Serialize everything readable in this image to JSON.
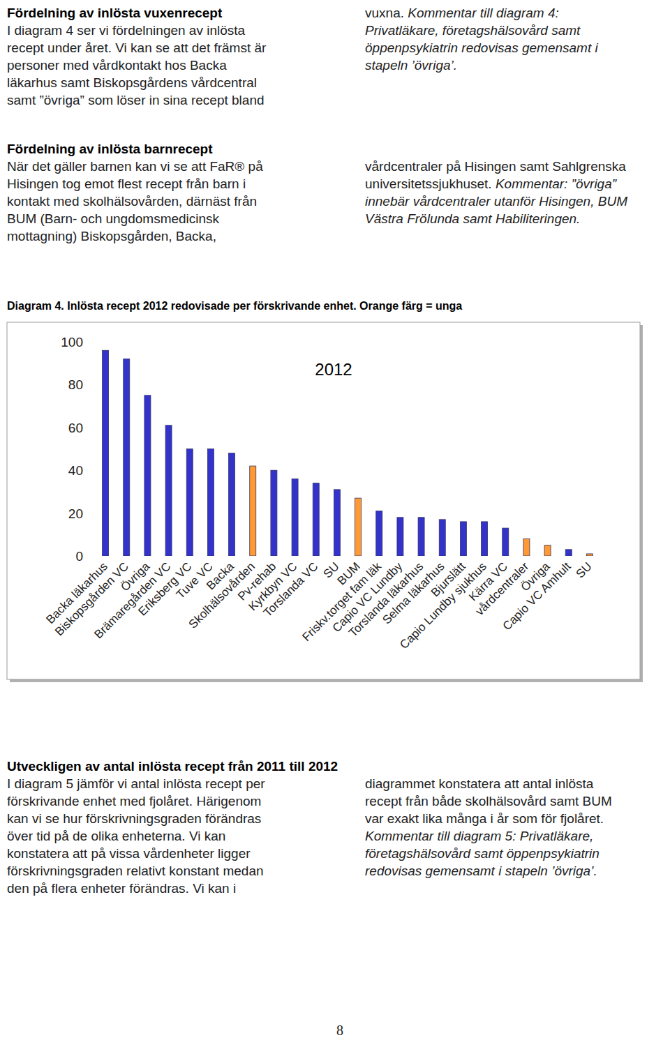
{
  "document": {
    "sections": [
      {
        "heading": "Fördelning av inlösta vuxenrecept",
        "left": [
          [
            {
              "text": "I diagram 4 ser vi fördelningen av inlösta"
            }
          ],
          [
            {
              "text": "recept under året. Vi kan se att det främst är"
            }
          ],
          [
            {
              "text": "personer med vårdkontakt hos Backa"
            }
          ],
          [
            {
              "text": "läkarhus samt Biskopsgårdens vårdcentral"
            }
          ],
          [
            {
              "text": "samt ”övriga” som löser in sina recept bland"
            }
          ]
        ],
        "right": [
          [
            {
              "text": "vuxna. "
            },
            {
              "text": "Kommentar till diagram 4:",
              "italic": true
            }
          ],
          [
            {
              "text": "Privatläkare, företagshälsovård samt",
              "italic": true
            }
          ],
          [
            {
              "text": "öppenpsykiatrin redovisas gemensamt i",
              "italic": true
            }
          ],
          [
            {
              "text": "stapeln ’övriga’.",
              "italic": true
            }
          ]
        ]
      },
      {
        "heading": "Fördelning av inlösta barnrecept",
        "left": [
          [
            {
              "text": "När det gäller barnen kan vi se att FaR® på"
            }
          ],
          [
            {
              "text": "Hisingen tog emot flest recept från barn i"
            }
          ],
          [
            {
              "text": "kontakt med skolhälsovården, därnäst från"
            }
          ],
          [
            {
              "text": "BUM (Barn- och ungdomsmedicinsk"
            }
          ],
          [
            {
              "text": "mottagning) Biskopsgården, Backa,"
            }
          ]
        ],
        "right": [
          [
            {
              "text": "vårdcentraler på Hisingen samt Sahlgrenska"
            }
          ],
          [
            {
              "text": "universitetssjukhuset. "
            },
            {
              "text": "Kommentar: ”övriga”",
              "italic": true
            }
          ],
          [
            {
              "text": "innebär vårdcentraler utanför Hisingen, BUM",
              "italic": true
            }
          ],
          [
            {
              "text": "Västra Frölunda samt Habiliteringen.",
              "italic": true
            }
          ]
        ]
      },
      {
        "heading": "Utveckligen av antal inlösta recept från 2011 till 2012",
        "left": [
          [
            {
              "text": "I diagram 5 jämför vi antal inlösta recept per"
            }
          ],
          [
            {
              "text": "förskrivande enhet med fjolåret. Härigenom"
            }
          ],
          [
            {
              "text": "kan vi se hur förskrivningsgraden förändras"
            }
          ],
          [
            {
              "text": "över tid på de olika enheterna. Vi kan"
            }
          ],
          [
            {
              "text": "konstatera att på vissa vårdenheter ligger"
            }
          ],
          [
            {
              "text": "förskrivningsgraden relativt konstant medan"
            }
          ],
          [
            {
              "text": "den på flera enheter förändras. Vi kan i"
            }
          ]
        ],
        "right": [
          [
            {
              "text": "diagrammet konstatera att antal inlösta"
            }
          ],
          [
            {
              "text": "recept från både skolhälsovård samt BUM"
            }
          ],
          [
            {
              "text": "var exakt lika många i år som för fjolåret."
            }
          ],
          [
            {
              "text": "Kommentar till diagram 5: Privatläkare,",
              "italic": true
            }
          ],
          [
            {
              "text": "företagshälsovård samt öppenpsykiatrin",
              "italic": true
            }
          ],
          [
            {
              "text": "redovisas gemensamt i stapeln ’övriga’.",
              "italic": true
            }
          ]
        ]
      }
    ],
    "caption": "Diagram 4. Inlösta recept 2012 redovisade per förskrivande enhet. Orange färg = unga",
    "page_number": "8"
  },
  "chart_data": {
    "type": "bar",
    "title": "2012",
    "categories": [
      "Backa läkarhus",
      "Biskopsgården VC",
      "Övriga",
      "Brämaregården VC",
      "Eriksberg VC",
      "Tuve VC",
      "Backa",
      "Skolhälsovården",
      "Pv-rehab",
      "Kyrkbyn VC",
      "Torslanda VC",
      "SU",
      "BUM",
      "Friskv.torget fam läk",
      "Capio VC Lundby",
      "Torslanda läkarhus",
      "Selma läkarhus",
      "Bjurslätt",
      "Capio Lundby sjukhus",
      "Kärra VC",
      "vårdcentraler",
      "Övriga",
      "Capio VC Amhult",
      "SU"
    ],
    "values": [
      96,
      92,
      75,
      61,
      50,
      50,
      48,
      42,
      40,
      36,
      34,
      31,
      27,
      21,
      18,
      18,
      17,
      16,
      16,
      13,
      8,
      5,
      3,
      1
    ],
    "colors": [
      "#3333cc",
      "#3333cc",
      "#3333cc",
      "#3333cc",
      "#3333cc",
      "#3333cc",
      "#3333cc",
      "#ff9933",
      "#3333cc",
      "#3333cc",
      "#3333cc",
      "#3333cc",
      "#ff9933",
      "#3333cc",
      "#3333cc",
      "#3333cc",
      "#3333cc",
      "#3333cc",
      "#3333cc",
      "#3333cc",
      "#ff9933",
      "#ff9933",
      "#3333cc",
      "#ff9933"
    ],
    "ylim": [
      0,
      100
    ],
    "yticks": [
      0,
      20,
      40,
      60,
      80,
      100
    ],
    "grid": false
  }
}
